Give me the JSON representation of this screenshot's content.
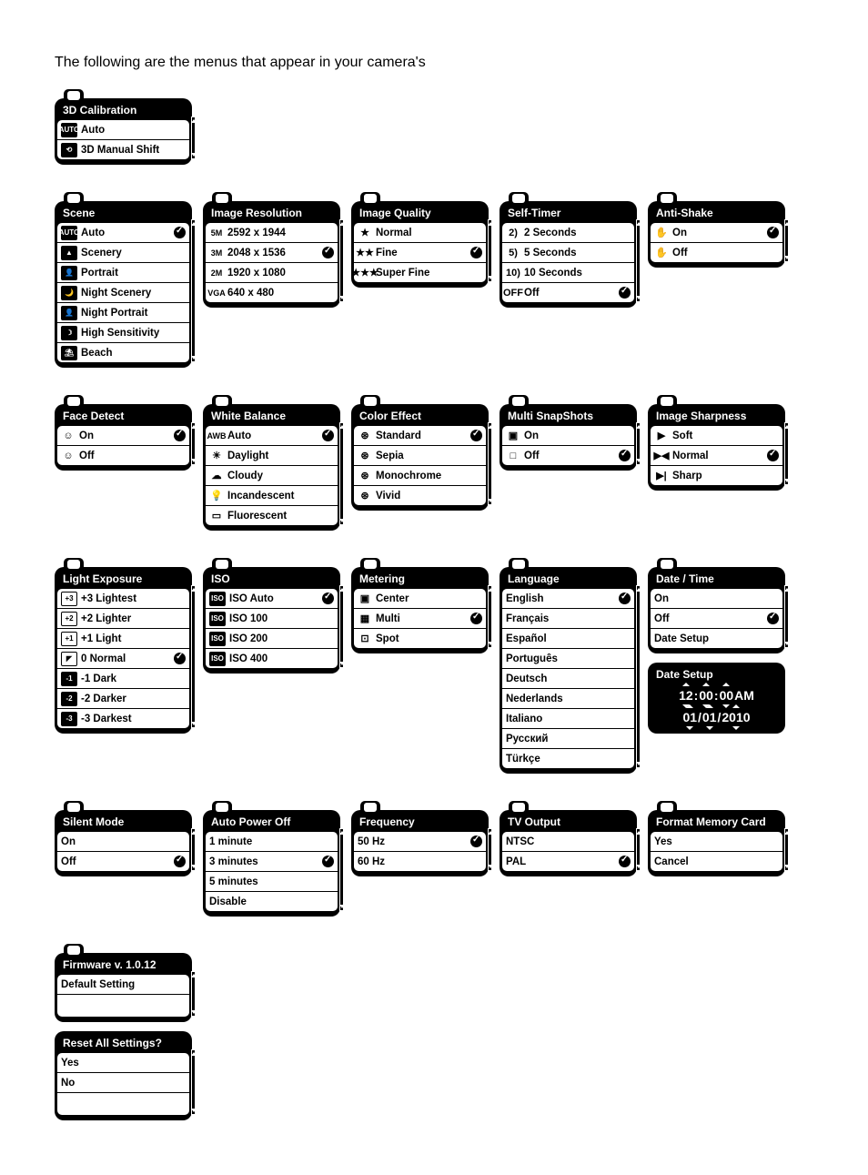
{
  "intro": "The following are the menus that appear in your camera's",
  "m_3d": {
    "title": "3D Calibration",
    "items": [
      {
        "icon": "AUTO",
        "ibox": "b",
        "label": "Auto"
      },
      {
        "icon": "⟲",
        "ibox": "b",
        "label": "3D Manual Shift"
      }
    ]
  },
  "m_scene": {
    "title": "Scene",
    "items": [
      {
        "icon": "AUTO",
        "ibox": "b",
        "label": "Auto",
        "check": true
      },
      {
        "icon": "▲",
        "ibox": "b",
        "label": "Scenery"
      },
      {
        "icon": "👤",
        "ibox": "b",
        "label": "Portrait"
      },
      {
        "icon": "🌙",
        "ibox": "b",
        "label": "Night Scenery"
      },
      {
        "icon": "👤",
        "ibox": "b",
        "label": "Night Portrait"
      },
      {
        "icon": "☽",
        "ibox": "b",
        "label": "High Sensitivity"
      },
      {
        "icon": "⛱",
        "ibox": "b",
        "label": "Beach"
      }
    ]
  },
  "m_res": {
    "title": "Image Resolution",
    "items": [
      {
        "txt": "5M",
        "label": "2592 x 1944"
      },
      {
        "txt": "3M",
        "label": "2048 x 1536",
        "check": true
      },
      {
        "txt": "2M",
        "label": "1920 x 1080"
      },
      {
        "txt": "VGA",
        "label": "640 x 480"
      }
    ]
  },
  "m_qual": {
    "title": "Image Quality",
    "items": [
      {
        "glyph": "★",
        "label": "Normal"
      },
      {
        "glyph": "★★",
        "label": "Fine",
        "check": true
      },
      {
        "glyph": "★★★",
        "label": "Super Fine"
      }
    ]
  },
  "m_timer": {
    "title": "Self-Timer",
    "items": [
      {
        "glyph": "2)",
        "label": "2 Seconds"
      },
      {
        "glyph": "5)",
        "label": "5 Seconds"
      },
      {
        "glyph": "10)",
        "label": "10 Seconds"
      },
      {
        "glyph": "OFF",
        "label": "Off",
        "check": true
      }
    ]
  },
  "m_shake": {
    "title": "Anti-Shake",
    "items": [
      {
        "glyph": "✋",
        "label": "On",
        "check": true
      },
      {
        "glyph": "✋",
        "label": "Off"
      }
    ]
  },
  "m_face": {
    "title": "Face Detect",
    "items": [
      {
        "glyph": "☺",
        "label": "On",
        "check": true
      },
      {
        "glyph": "☺",
        "label": "Off"
      }
    ]
  },
  "m_wb": {
    "title": "White Balance",
    "items": [
      {
        "txt": "AWB",
        "label": "Auto",
        "check": true
      },
      {
        "glyph": "☀",
        "label": "Daylight"
      },
      {
        "glyph": "☁",
        "label": "Cloudy"
      },
      {
        "glyph": "💡",
        "label": "Incandescent"
      },
      {
        "glyph": "▭",
        "label": "Fluorescent"
      }
    ]
  },
  "m_color": {
    "title": "Color Effect",
    "items": [
      {
        "glyph": "⊛",
        "label": "Standard",
        "check": true
      },
      {
        "glyph": "⊛",
        "label": "Sepia"
      },
      {
        "glyph": "⊛",
        "label": "Monochrome"
      },
      {
        "glyph": "⊛",
        "label": "Vivid"
      }
    ]
  },
  "m_multi": {
    "title": "Multi SnapShots",
    "items": [
      {
        "glyph": "▣",
        "label": "On"
      },
      {
        "glyph": "□",
        "label": "Off",
        "check": true
      }
    ]
  },
  "m_sharp": {
    "title": "Image Sharpness",
    "items": [
      {
        "glyph": "▶",
        "label": "Soft"
      },
      {
        "glyph": "▶◀",
        "label": "Normal",
        "check": true
      },
      {
        "glyph": "▶|",
        "label": "Sharp"
      }
    ]
  },
  "m_exp": {
    "title": "Light Exposure",
    "items": [
      {
        "icon": "+3",
        "ibox": "w",
        "label": "+3 Lightest"
      },
      {
        "icon": "+2",
        "ibox": "w",
        "label": "+2 Lighter"
      },
      {
        "icon": "+1",
        "ibox": "w",
        "label": "+1 Light"
      },
      {
        "icon": "◤",
        "ibox": "w",
        "label": "0 Normal",
        "check": true
      },
      {
        "icon": "-1",
        "ibox": "b",
        "label": "-1 Dark"
      },
      {
        "icon": "-2",
        "ibox": "b",
        "label": "-2 Darker"
      },
      {
        "icon": "-3",
        "ibox": "b",
        "label": "-3 Darkest"
      }
    ]
  },
  "m_iso": {
    "title": "ISO",
    "items": [
      {
        "icon": "ISO",
        "ibox": "b",
        "label": "ISO Auto",
        "check": true
      },
      {
        "icon": "ISO",
        "ibox": "b",
        "label": "ISO 100"
      },
      {
        "icon": "ISO",
        "ibox": "b",
        "label": "ISO 200"
      },
      {
        "icon": "ISO",
        "ibox": "b",
        "label": "ISO 400"
      }
    ]
  },
  "m_meter": {
    "title": "Metering",
    "items": [
      {
        "glyph": "▣",
        "label": "Center"
      },
      {
        "glyph": "▦",
        "label": "Multi",
        "check": true
      },
      {
        "glyph": "⊡",
        "label": "Spot"
      }
    ]
  },
  "m_lang": {
    "title": "Language",
    "items": [
      {
        "label": "English",
        "check": true
      },
      {
        "label": "Français"
      },
      {
        "label": "Español"
      },
      {
        "label": "Português"
      },
      {
        "label": "Deutsch"
      },
      {
        "label": "Nederlands"
      },
      {
        "label": "Italiano"
      },
      {
        "label": "Русский"
      },
      {
        "label": "Türkçe"
      }
    ]
  },
  "m_date": {
    "title": "Date / Time",
    "items": [
      {
        "label": "On"
      },
      {
        "label": "Off",
        "check": true
      },
      {
        "label": "Date Setup"
      }
    ]
  },
  "m_datesetup": {
    "title": "Date Setup",
    "time": [
      "12",
      ":",
      "00",
      ":",
      "00",
      " AM"
    ],
    "date": [
      "01",
      "/",
      "01",
      "/",
      "2010"
    ]
  },
  "m_silent": {
    "title": "Silent Mode",
    "items": [
      {
        "label": "On"
      },
      {
        "label": "Off",
        "check": true
      }
    ]
  },
  "m_power": {
    "title": "Auto Power Off",
    "items": [
      {
        "label": "1 minute"
      },
      {
        "label": "3 minutes",
        "check": true
      },
      {
        "label": "5 minutes"
      },
      {
        "label": "Disable"
      }
    ]
  },
  "m_freq": {
    "title": "Frequency",
    "items": [
      {
        "label": "50 Hz",
        "check": true
      },
      {
        "label": "60 Hz"
      }
    ]
  },
  "m_tv": {
    "title": "TV Output",
    "items": [
      {
        "label": "NTSC"
      },
      {
        "label": "PAL",
        "check": true
      }
    ]
  },
  "m_format": {
    "title": "Format Memory Card",
    "items": [
      {
        "label": "Yes"
      },
      {
        "label": "Cancel"
      }
    ]
  },
  "m_fw": {
    "title": "Firmware v. 1.0.12",
    "items": [
      {
        "label": "Default Setting",
        "center": true
      }
    ]
  },
  "m_reset": {
    "title": "Reset All Settings?",
    "items": [
      {
        "label": "Yes"
      },
      {
        "label": "No"
      }
    ]
  }
}
